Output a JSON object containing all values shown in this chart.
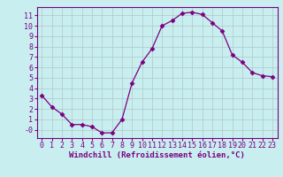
{
  "x": [
    0,
    1,
    2,
    3,
    4,
    5,
    6,
    7,
    8,
    9,
    10,
    11,
    12,
    13,
    14,
    15,
    16,
    17,
    18,
    19,
    20,
    21,
    22,
    23
  ],
  "y": [
    3.3,
    2.2,
    1.5,
    0.5,
    0.5,
    0.3,
    -0.3,
    -0.3,
    1.0,
    4.5,
    6.5,
    7.8,
    10.0,
    10.5,
    11.2,
    11.3,
    11.1,
    10.3,
    9.5,
    7.2,
    6.5,
    5.5,
    5.2,
    5.1
  ],
  "line_color": "#7b0080",
  "marker": "D",
  "marker_size": 2.5,
  "bg_color": "#c8eef0",
  "grid_color": "#b0c8c8",
  "xlabel": "Windchill (Refroidissement éolien,°C)",
  "xlim": [
    -0.5,
    23.5
  ],
  "ylim": [
    -0.8,
    11.8
  ],
  "yticks": [
    0,
    1,
    2,
    3,
    4,
    5,
    6,
    7,
    8,
    9,
    10,
    11
  ],
  "ytick_labels": [
    "-0",
    "1",
    "2",
    "3",
    "4",
    "5",
    "6",
    "7",
    "8",
    "9",
    "10",
    "11"
  ],
  "xticks": [
    0,
    1,
    2,
    3,
    4,
    5,
    6,
    7,
    8,
    9,
    10,
    11,
    12,
    13,
    14,
    15,
    16,
    17,
    18,
    19,
    20,
    21,
    22,
    23
  ],
  "label_fontsize": 6.5,
  "tick_fontsize": 6.0,
  "spine_color": "#7b0080"
}
